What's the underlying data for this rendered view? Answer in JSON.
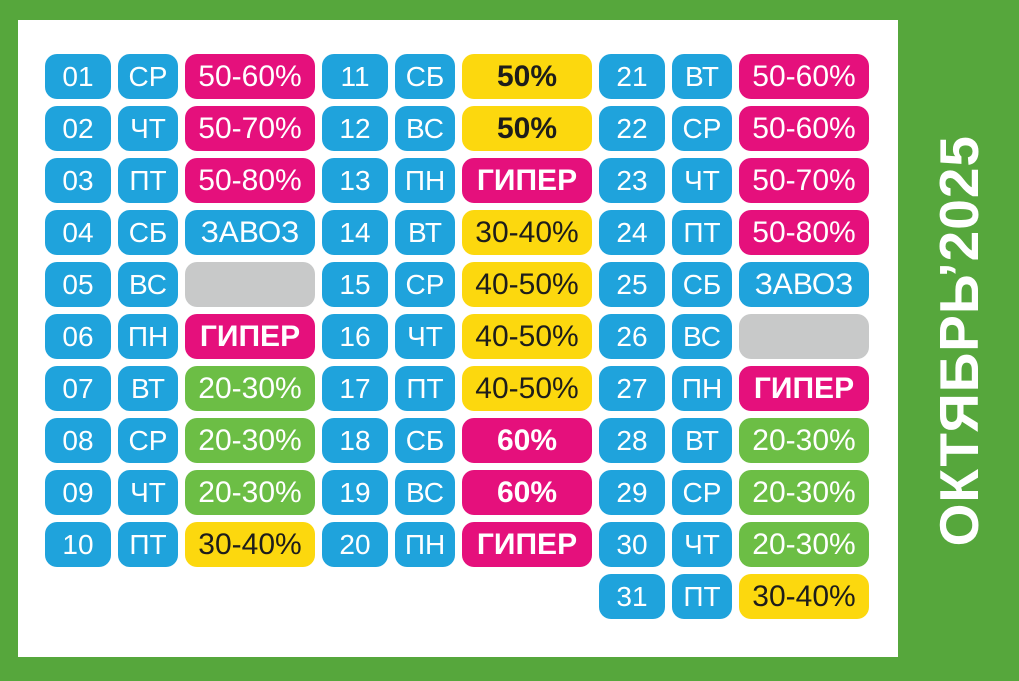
{
  "title": "ОКТЯБРЬ’2025",
  "colors": {
    "frame_green": "#56a73c",
    "panel_white": "#ffffff",
    "day_blue": "#1fa3dc",
    "promo_magenta": "#e5107c",
    "promo_green": "#6cbe45",
    "promo_yellow": "#fcd80e",
    "empty_gray": "#c8c9c9",
    "dark_text": "#1d1d1b",
    "title_text": "#ffffff"
  },
  "chart_data": {
    "type": "table",
    "title": "ОКТЯБРЬ’2025",
    "columns": [
      "day_number",
      "weekday",
      "discount_label"
    ],
    "layout": {
      "column_groups_of_days": [
        10,
        10,
        11
      ],
      "legend_position": "none",
      "grid": false
    },
    "rows": [
      {
        "day": "01",
        "weekday": "СР",
        "label": "50-60%",
        "style": "magenta"
      },
      {
        "day": "02",
        "weekday": "ЧТ",
        "label": "50-70%",
        "style": "magenta"
      },
      {
        "day": "03",
        "weekday": "ПТ",
        "label": "50-80%",
        "style": "magenta"
      },
      {
        "day": "04",
        "weekday": "СБ",
        "label": "ЗАВОЗ",
        "style": "blue"
      },
      {
        "day": "05",
        "weekday": "ВС",
        "label": "",
        "style": "gray"
      },
      {
        "day": "06",
        "weekday": "ПН",
        "label": "ГИПЕР",
        "style": "magenta-bold"
      },
      {
        "day": "07",
        "weekday": "ВТ",
        "label": "20-30%",
        "style": "green"
      },
      {
        "day": "08",
        "weekday": "СР",
        "label": "20-30%",
        "style": "green"
      },
      {
        "day": "09",
        "weekday": "ЧТ",
        "label": "20-30%",
        "style": "green"
      },
      {
        "day": "10",
        "weekday": "ПТ",
        "label": "30-40%",
        "style": "yellow"
      },
      {
        "day": "11",
        "weekday": "СБ",
        "label": "50%",
        "style": "yellow-bold"
      },
      {
        "day": "12",
        "weekday": "ВС",
        "label": "50%",
        "style": "yellow-bold"
      },
      {
        "day": "13",
        "weekday": "ПН",
        "label": "ГИПЕР",
        "style": "magenta-bold"
      },
      {
        "day": "14",
        "weekday": "ВТ",
        "label": "30-40%",
        "style": "yellow"
      },
      {
        "day": "15",
        "weekday": "СР",
        "label": "40-50%",
        "style": "yellow"
      },
      {
        "day": "16",
        "weekday": "ЧТ",
        "label": "40-50%",
        "style": "yellow"
      },
      {
        "day": "17",
        "weekday": "ПТ",
        "label": "40-50%",
        "style": "yellow"
      },
      {
        "day": "18",
        "weekday": "СБ",
        "label": "60%",
        "style": "magenta-bold"
      },
      {
        "day": "19",
        "weekday": "ВС",
        "label": "60%",
        "style": "magenta-bold"
      },
      {
        "day": "20",
        "weekday": "ПН",
        "label": "ГИПЕР",
        "style": "magenta-bold"
      },
      {
        "day": "21",
        "weekday": "ВТ",
        "label": "50-60%",
        "style": "magenta"
      },
      {
        "day": "22",
        "weekday": "СР",
        "label": "50-60%",
        "style": "magenta"
      },
      {
        "day": "23",
        "weekday": "ЧТ",
        "label": "50-70%",
        "style": "magenta"
      },
      {
        "day": "24",
        "weekday": "ПТ",
        "label": "50-80%",
        "style": "magenta"
      },
      {
        "day": "25",
        "weekday": "СБ",
        "label": "ЗАВОЗ",
        "style": "blue"
      },
      {
        "day": "26",
        "weekday": "ВС",
        "label": "",
        "style": "gray"
      },
      {
        "day": "27",
        "weekday": "ПН",
        "label": "ГИПЕР",
        "style": "magenta-bold"
      },
      {
        "day": "28",
        "weekday": "ВТ",
        "label": "20-30%",
        "style": "green"
      },
      {
        "day": "29",
        "weekday": "СР",
        "label": "20-30%",
        "style": "green"
      },
      {
        "day": "30",
        "weekday": "ЧТ",
        "label": "20-30%",
        "style": "green"
      },
      {
        "day": "31",
        "weekday": "ПТ",
        "label": "30-40%",
        "style": "yellow"
      }
    ]
  }
}
